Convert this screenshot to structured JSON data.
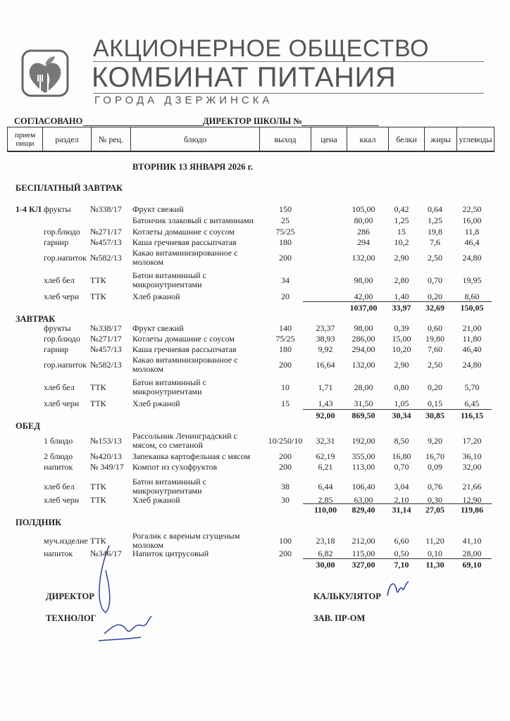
{
  "header": {
    "company_line1": "АКЦИОНЕРНОЕ ОБЩЕСТВО",
    "company_line2": "КОМБИНАТ ПИТАНИЯ",
    "company_line3": "ГОРОДА ДЗЕРЖИНСКА",
    "approved_label": "СОГЛАСОВАНО",
    "school_director_label": "ДИРЕКТОР ШКОЛЫ №"
  },
  "columns": [
    "прием пищи",
    "раздел",
    "№ рец.",
    "блюдо",
    "выход",
    "цена",
    "ккал",
    "белки",
    "жиры",
    "углеводы"
  ],
  "date_title": "ВТОРНИК 13 ЯНВАРЯ 2026 г.",
  "sections": [
    {
      "title": "БЕСПЛАТНЫЙ ЗАВТРАК",
      "rows": [
        {
          "meal": "1-4 КЛ",
          "section": "фрукты",
          "recipe": "№338/17",
          "dish": "Фрукт свежий",
          "yield": "150",
          "price": "",
          "kcal": "105,00",
          "protein": "0,42",
          "fat": "0,64",
          "carbs": "22,50"
        },
        {
          "meal": "",
          "section": "",
          "recipe": "",
          "dish": "Батончик злаковый с витаминами",
          "yield": "25",
          "price": "",
          "kcal": "80,00",
          "protein": "1,25",
          "fat": "1,25",
          "carbs": "16,00"
        },
        {
          "meal": "",
          "section": "гор.блюдо",
          "recipe": "№271/17",
          "dish": "Котлеты домашние с соусом",
          "yield": "75/25",
          "price": "",
          "kcal": "286",
          "protein": "15",
          "fat": "19,8",
          "carbs": "11,8"
        },
        {
          "meal": "",
          "section": "гарнир",
          "recipe": "№457/13",
          "dish": "Каша гречневая рассыпчатая",
          "yield": "180",
          "price": "",
          "kcal": "294",
          "protein": "10,2",
          "fat": "7,6",
          "carbs": "46,4"
        },
        {
          "meal": "",
          "section": "гор.напиток",
          "recipe": "№582/13",
          "dish": "Какао витаминизированное с молоком",
          "yield": "200",
          "price": "",
          "kcal": "132,00",
          "protein": "2,90",
          "fat": "2,50",
          "carbs": "24,80"
        },
        {
          "meal": "",
          "section": "хлеб бел",
          "recipe": "ТТК",
          "dish": "Батон витаминный с микронутриентами",
          "yield": "34",
          "price": "",
          "kcal": "98,00",
          "protein": "2,80",
          "fat": "0,70",
          "carbs": "19,95"
        },
        {
          "meal": "",
          "section": "хлеб черн",
          "recipe": "ТТК",
          "dish": "Хлеб ржаной",
          "yield": "20",
          "price": "",
          "kcal": "42,00",
          "protein": "1,40",
          "fat": "0,20",
          "carbs": "8,60"
        }
      ],
      "total": {
        "price": "",
        "kcal": "1037,00",
        "protein": "33,97",
        "fat": "32,69",
        "carbs": "150,05"
      }
    },
    {
      "title": "ЗАВТРАК",
      "rows": [
        {
          "meal": "",
          "section": "фрукты",
          "recipe": "№338/17",
          "dish": "Фрукт свежий",
          "yield": "140",
          "price": "23,37",
          "kcal": "98,00",
          "protein": "0,39",
          "fat": "0,60",
          "carbs": "21,00"
        },
        {
          "meal": "",
          "section": "гор.блюдо",
          "recipe": "№271/17",
          "dish": "Котлеты домашние с соусом",
          "yield": "75/25",
          "price": "38,93",
          "kcal": "286,00",
          "protein": "15,00",
          "fat": "19,80",
          "carbs": "11,80"
        },
        {
          "meal": "",
          "section": "гарнир",
          "recipe": "№457/13",
          "dish": "Каша гречневая рассыпчатая",
          "yield": "180",
          "price": "9,92",
          "kcal": "294,00",
          "protein": "10,20",
          "fat": "7,60",
          "carbs": "46,40"
        },
        {
          "meal": "",
          "section": "гор.напиток",
          "recipe": "№582/13",
          "dish": "Какао витаминизированное с молоком",
          "yield": "200",
          "price": "16,64",
          "kcal": "132,00",
          "protein": "2,90",
          "fat": "2,50",
          "carbs": "24,80"
        },
        {
          "meal": "",
          "section": "хлеб бел",
          "recipe": "ТТК",
          "dish": "Батон витаминный с микронутриентами",
          "yield": "10",
          "price": "1,71",
          "kcal": "28,00",
          "protein": "0,80",
          "fat": "0,20",
          "carbs": "5,70"
        },
        {
          "meal": "",
          "section": "хлеб черн",
          "recipe": "ТТК",
          "dish": "Хлеб ржаной",
          "yield": "15",
          "price": "1,43",
          "kcal": "31,50",
          "protein": "1,05",
          "fat": "0,15",
          "carbs": "6,45"
        }
      ],
      "total": {
        "price": "92,00",
        "kcal": "869,50",
        "protein": "30,34",
        "fat": "30,85",
        "carbs": "116,15"
      }
    },
    {
      "title": "ОБЕД",
      "rows": [
        {
          "meal": "",
          "section": "1 блюдо",
          "recipe": "№153/13",
          "dish": "Рассольник Ленинградский с мясом, со сметаной",
          "yield": "10/250/10",
          "price": "32,31",
          "kcal": "192,00",
          "protein": "8,50",
          "fat": "9,20",
          "carbs": "17,20"
        },
        {
          "meal": "",
          "section": "2 блюдо",
          "recipe": "№420/13",
          "dish": "Запеканка картофельная с мясом",
          "yield": "200",
          "price": "62,19",
          "kcal": "355,00",
          "protein": "16,80",
          "fat": "16,70",
          "carbs": "36,10"
        },
        {
          "meal": "",
          "section": "напиток",
          "recipe": "№ 349/17",
          "dish": "Компот из сухофруктов",
          "yield": "200",
          "price": "6,21",
          "kcal": "113,00",
          "protein": "0,70",
          "fat": "0,09",
          "carbs": "32,00"
        },
        {
          "meal": "",
          "section": "хлеб бел",
          "recipe": "ТТК",
          "dish": "Батон витаминный с микронутриентами",
          "yield": "38",
          "price": "6,44",
          "kcal": "106,40",
          "protein": "3,04",
          "fat": "0,76",
          "carbs": "21,66"
        },
        {
          "meal": "",
          "section": "хлеб черн",
          "recipe": "ТТК",
          "dish": "Хлеб ржаной",
          "yield": "30",
          "price": "2,85",
          "kcal": "63,00",
          "protein": "2,10",
          "fat": "0,30",
          "carbs": "12,90"
        }
      ],
      "total": {
        "price": "110,00",
        "kcal": "829,40",
        "protein": "31,14",
        "fat": "27,05",
        "carbs": "119,86"
      }
    },
    {
      "title": "ПОЛДНИК",
      "rows": [
        {
          "meal": "",
          "section": "муч.изделие",
          "recipe": "ТТК",
          "dish": "Рогалик с вареным сгущеным молоком",
          "yield": "100",
          "price": "23,18",
          "kcal": "212,00",
          "protein": "6,60",
          "fat": "11,20",
          "carbs": "41,10"
        },
        {
          "meal": "",
          "section": "напиток",
          "recipe": "№346/17",
          "dish": "Напиток цитрусовый",
          "yield": "200",
          "price": "6,82",
          "kcal": "115,00",
          "protein": "0,50",
          "fat": "0,10",
          "carbs": "28,00"
        }
      ],
      "total": {
        "price": "30,00",
        "kcal": "327,00",
        "protein": "7,10",
        "fat": "11,30",
        "carbs": "69,10"
      }
    }
  ],
  "signatures": {
    "director": "ДИРЕКТОР",
    "technologist": "ТЕХНОЛОГ",
    "calculator": "КАЛЬКУЛЯТОР",
    "production_head": "ЗАВ.  ПР-ОМ"
  },
  "colors": {
    "ink": "#222222",
    "logo_gray": "#555555",
    "signature_ink": "#2a3f9e"
  }
}
